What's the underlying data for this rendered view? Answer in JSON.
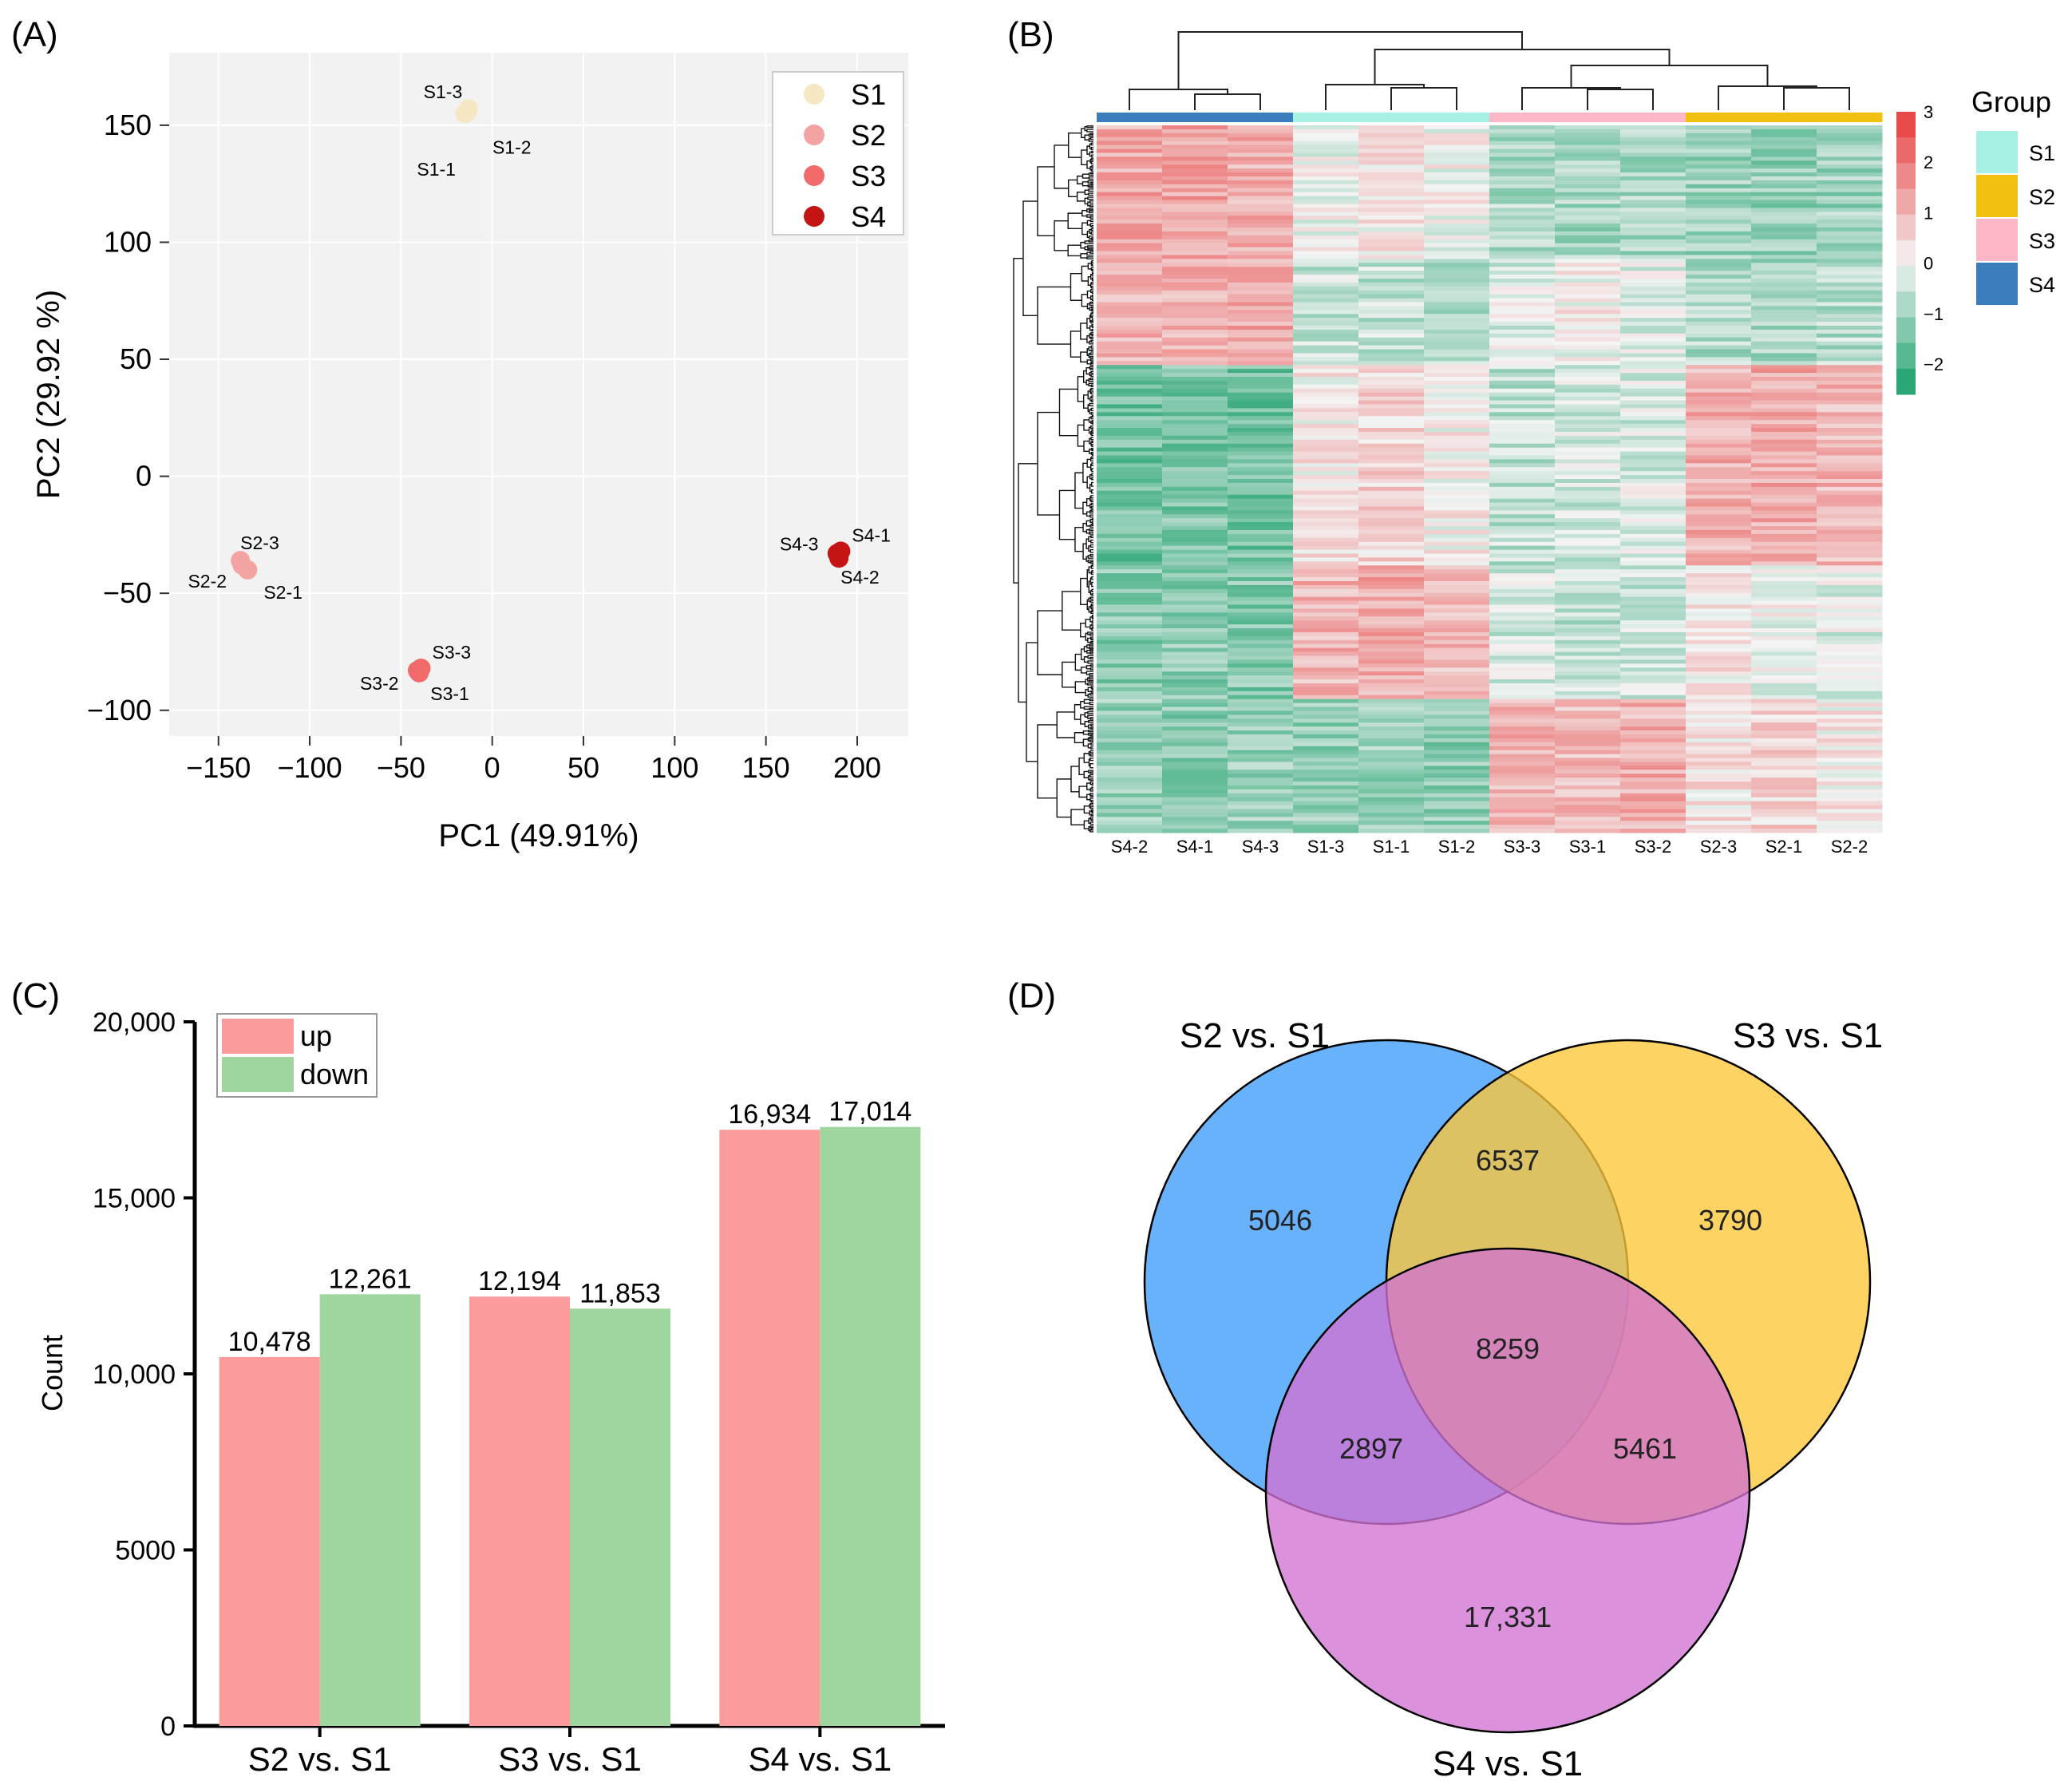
{
  "panels": {
    "a": {
      "label": "(A)"
    },
    "b": {
      "label": "(B)"
    },
    "c": {
      "label": "(C)"
    },
    "d": {
      "label": "(D)"
    }
  },
  "chart_data": [
    {
      "type": "scatter",
      "panel": "(A)",
      "title": "",
      "xlabel": "PC1 (49.91%)",
      "ylabel": "PC2 (29.92 %)",
      "xlim": [
        -177,
        228
      ],
      "ylim": [
        -111,
        181
      ],
      "xticks": [
        -150,
        -100,
        -50,
        0,
        50,
        100,
        150,
        200
      ],
      "yticks": [
        -100,
        -50,
        0,
        50,
        100,
        150
      ],
      "xtick_labels": [
        "−150",
        "−100",
        "−50",
        "0",
        "50",
        "100",
        "150",
        "200"
      ],
      "ytick_labels": [
        "−100",
        "−50",
        "0",
        "50",
        "100",
        "150"
      ],
      "grid": true,
      "legend_position": "top-right",
      "series": [
        {
          "name": "S1",
          "color": "#f5e6c4",
          "points": [
            {
              "label": "S1-1",
              "x": -15,
              "y": 155
            },
            {
              "label": "S1-2",
              "x": -13,
              "y": 157
            },
            {
              "label": "S1-3",
              "x": -14,
              "y": 155.5
            }
          ]
        },
        {
          "name": "S2",
          "color": "#f4a3a3",
          "points": [
            {
              "label": "S2-1",
              "x": -134,
              "y": -40
            },
            {
              "label": "S2-2",
              "x": -137,
              "y": -38
            },
            {
              "label": "S2-3",
              "x": -138,
              "y": -36
            }
          ]
        },
        {
          "name": "S3",
          "color": "#f26b6b",
          "points": [
            {
              "label": "S3-1",
              "x": -40,
              "y": -84
            },
            {
              "label": "S3-2",
              "x": -41,
              "y": -83
            },
            {
              "label": "S3-3",
              "x": -39,
              "y": -82
            }
          ]
        },
        {
          "name": "S4",
          "color": "#c41414",
          "points": [
            {
              "label": "S4-1",
              "x": 191,
              "y": -32
            },
            {
              "label": "S4-2",
              "x": 190,
              "y": -35
            },
            {
              "label": "S4-3",
              "x": 189,
              "y": -33
            }
          ]
        }
      ]
    },
    {
      "type": "heatmap",
      "panel": "(B)",
      "columns": [
        "S4-2",
        "S4-1",
        "S4-3",
        "S1-3",
        "S1-1",
        "S1-2",
        "S3-3",
        "S3-1",
        "S3-2",
        "S2-3",
        "S2-1",
        "S2-2"
      ],
      "column_groups": [
        "S4",
        "S4",
        "S4",
        "S1",
        "S1",
        "S1",
        "S3",
        "S3",
        "S3",
        "S2",
        "S2",
        "S2"
      ],
      "group_legend_title": "Group",
      "group_legend": [
        {
          "name": "S1",
          "color": "#a6f0e4"
        },
        {
          "name": "S2",
          "color": "#f2c10f"
        },
        {
          "name": "S3",
          "color": "#fdb6c6"
        },
        {
          "name": "S4",
          "color": "#3a7ebd"
        }
      ],
      "scale_range": [
        -2.6,
        3
      ],
      "scale_ticks": [
        3,
        2,
        1,
        0,
        -1,
        -2
      ],
      "scale_tick_labels": [
        "3",
        "2",
        "1",
        "0",
        "−1",
        "−2"
      ],
      "row_cluster_blocks": [
        {
          "fraction": 0.19,
          "values": [
            1.2,
            1.3,
            1.1,
            -0.1,
            0.2,
            0.0,
            -0.8,
            -0.9,
            -0.9,
            -1.0,
            -1.1,
            -1.0
          ]
        },
        {
          "fraction": 0.15,
          "values": [
            1.0,
            1.1,
            1.2,
            -0.5,
            -0.6,
            -0.7,
            -0.3,
            0.1,
            -0.2,
            -0.8,
            -0.9,
            -0.7
          ]
        },
        {
          "fraction": 0.28,
          "values": [
            -1.5,
            -1.4,
            -1.5,
            0.2,
            0.5,
            0.1,
            -0.6,
            -0.4,
            -0.3,
            1.1,
            1.2,
            1.0
          ]
        },
        {
          "fraction": 0.19,
          "values": [
            -1.3,
            -1.2,
            -1.3,
            1.0,
            1.2,
            0.9,
            -0.4,
            -0.6,
            -0.5,
            0.2,
            -0.1,
            -0.3
          ]
        },
        {
          "fraction": 0.19,
          "values": [
            -1.1,
            -1.2,
            -1.0,
            -1.1,
            -1.0,
            -1.2,
            1.0,
            0.9,
            1.1,
            0.3,
            0.5,
            0.2
          ]
        }
      ]
    },
    {
      "type": "bar",
      "panel": "(C)",
      "title": "",
      "xlabel": "",
      "ylabel": "Count",
      "ylim": [
        0,
        20000
      ],
      "yticks": [
        0,
        5000,
        10000,
        15000,
        20000
      ],
      "ytick_labels": [
        "0",
        "5000",
        "10,000",
        "15,000",
        "20,000"
      ],
      "categories": [
        "S2 vs. S1",
        "S3 vs. S1",
        "S4 vs. S1"
      ],
      "legend_position": "top-left",
      "series": [
        {
          "name": "up",
          "color": "#fb9b9b",
          "values": [
            10478,
            12194,
            16934
          ],
          "labels": [
            "10,478",
            "12,194",
            "16,934"
          ]
        },
        {
          "name": "down",
          "color": "#9fd69f",
          "values": [
            12261,
            11853,
            17014
          ],
          "labels": [
            "12,261",
            "11,853",
            "17,014"
          ]
        }
      ]
    },
    {
      "type": "venn",
      "panel": "(D)",
      "sets": [
        {
          "name": "S2 vs. S1",
          "color": "#3d9bfa"
        },
        {
          "name": "S3 vs. S1",
          "color": "#fcc737"
        },
        {
          "name": "S4 vs. S1",
          "color": "#d272d2"
        }
      ],
      "regions": [
        {
          "sets": [
            "S2 vs. S1"
          ],
          "label": "5046",
          "value": 5046
        },
        {
          "sets": [
            "S3 vs. S1"
          ],
          "label": "3790",
          "value": 3790
        },
        {
          "sets": [
            "S4 vs. S1"
          ],
          "label": "17,331",
          "value": 17331
        },
        {
          "sets": [
            "S2 vs. S1",
            "S3 vs. S1"
          ],
          "label": "6537",
          "value": 6537
        },
        {
          "sets": [
            "S2 vs. S1",
            "S4 vs. S1"
          ],
          "label": "2897",
          "value": 2897
        },
        {
          "sets": [
            "S3 vs. S1",
            "S4 vs. S1"
          ],
          "label": "5461",
          "value": 5461
        },
        {
          "sets": [
            "S2 vs. S1",
            "S3 vs. S1",
            "S4 vs. S1"
          ],
          "label": "8259",
          "value": 8259
        }
      ]
    }
  ]
}
